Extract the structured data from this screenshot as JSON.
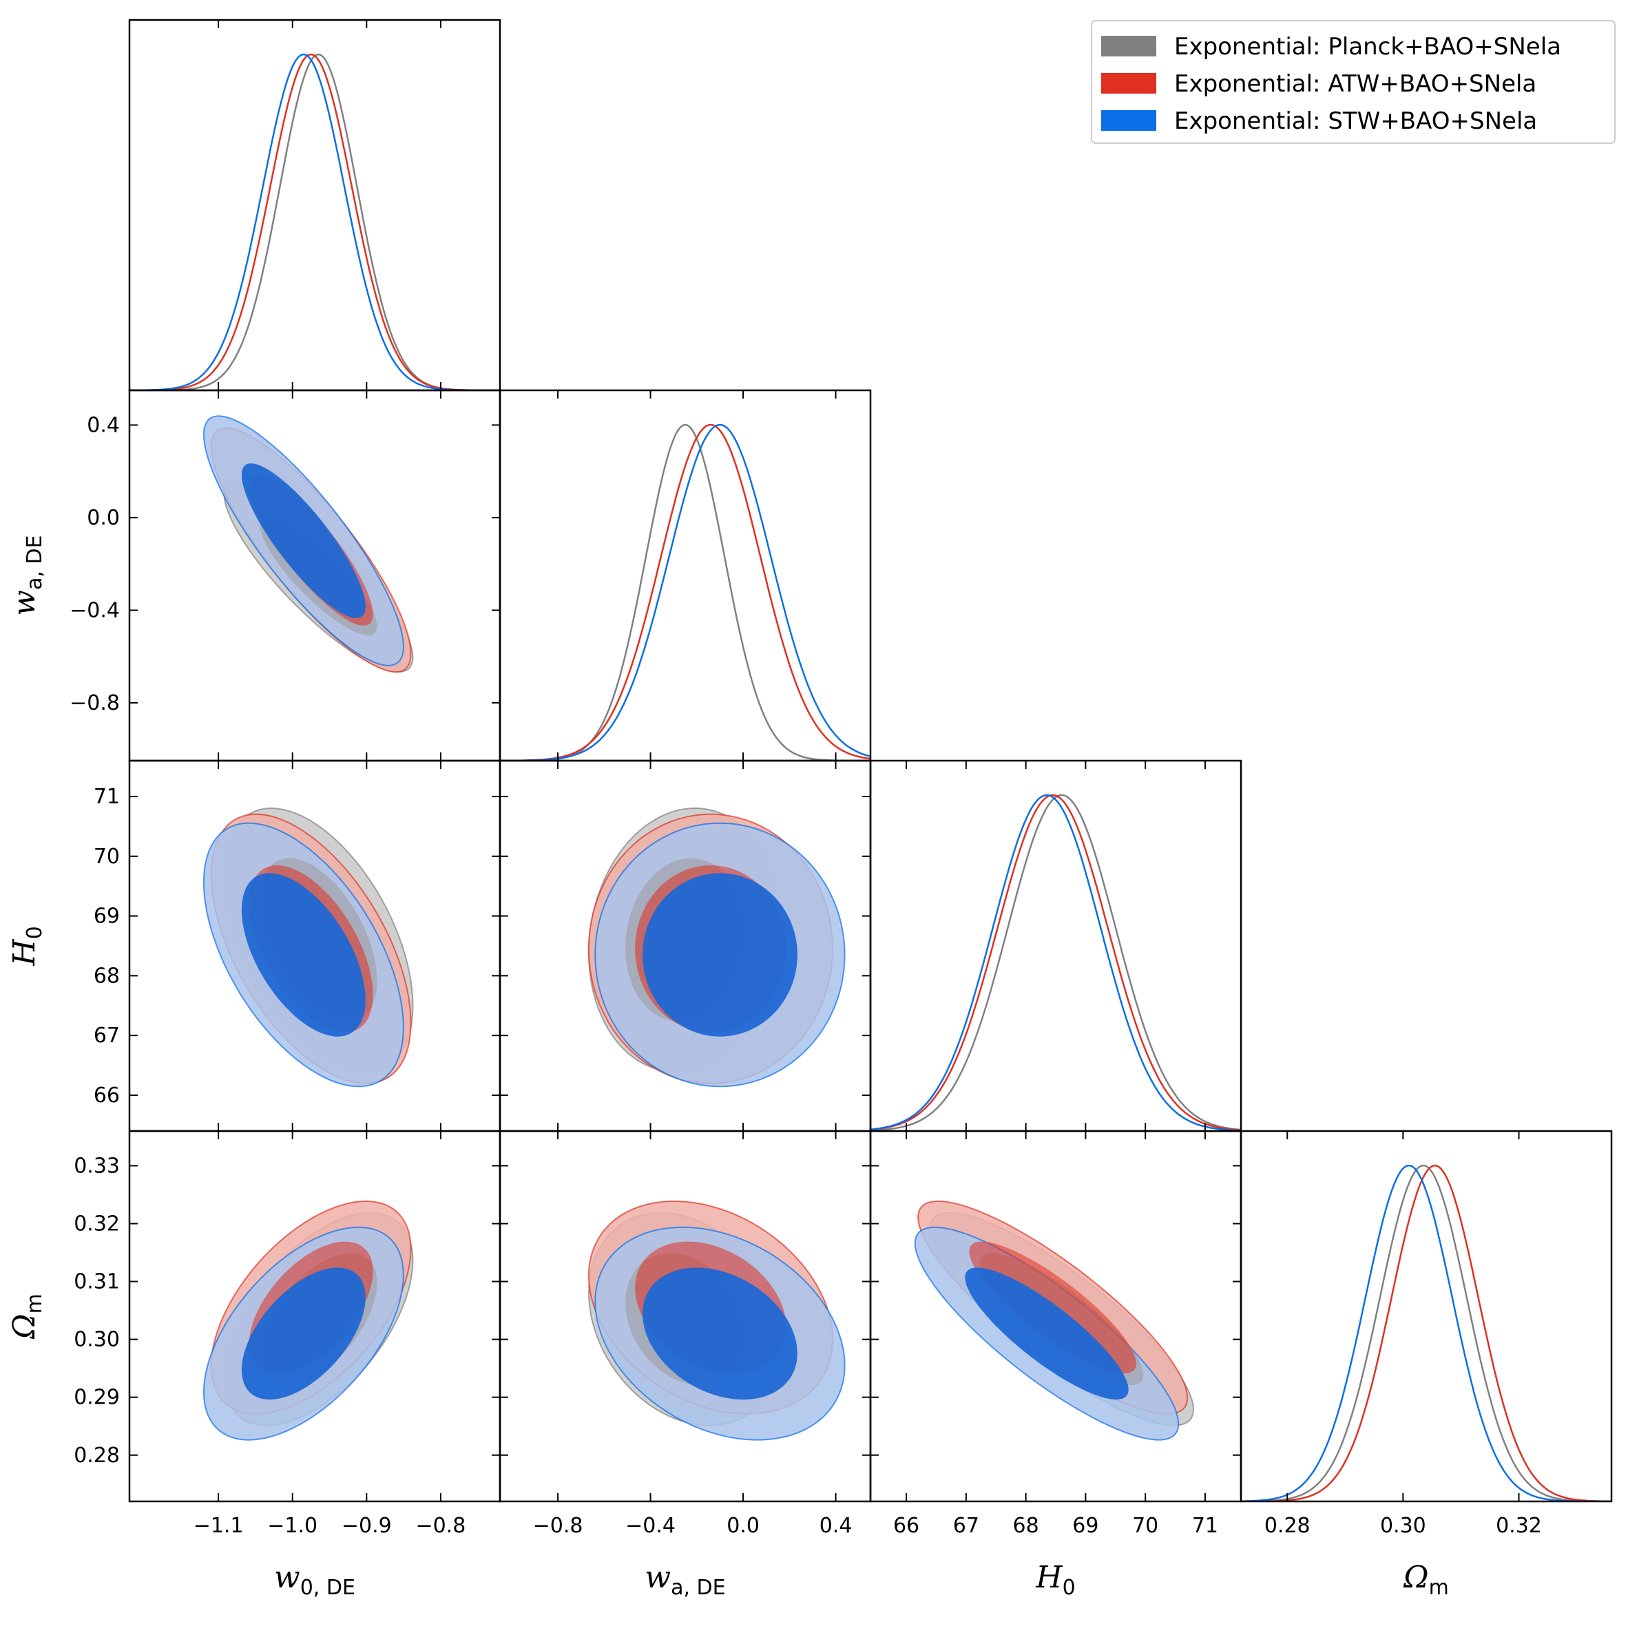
{
  "chart_data": {
    "type": "triangle-corner-plot",
    "params": [
      {
        "key": "w0",
        "label_main": "w",
        "label_sub": "0, DE",
        "range": [
          -1.22,
          -0.72
        ],
        "ticks": [
          -1.1,
          -1.0,
          -0.9,
          -0.8
        ],
        "tick_labels": [
          "−1.1",
          "−1.0",
          "−0.9",
          "−0.8"
        ]
      },
      {
        "key": "wa",
        "label_main": "w",
        "label_sub": "a, DE",
        "range": [
          -1.05,
          0.55
        ],
        "ticks": [
          -0.8,
          -0.4,
          0.0,
          0.4
        ],
        "tick_labels": [
          "−0.8",
          "−0.4",
          "0.0",
          "0.4"
        ]
      },
      {
        "key": "H0",
        "label_main": "H",
        "label_sub": "0",
        "range": [
          65.4,
          71.6
        ],
        "ticks": [
          66,
          67,
          68,
          69,
          70,
          71
        ],
        "tick_labels": [
          "66",
          "67",
          "68",
          "69",
          "70",
          "71"
        ]
      },
      {
        "key": "Om",
        "label_main": "Ω",
        "label_sub": "m",
        "range": [
          0.272,
          0.336
        ],
        "ticks": [
          0.28,
          0.3,
          0.32
        ],
        "tick_labels": [
          "0.28",
          "0.30",
          "0.32"
        ]
      }
    ],
    "row_tick_labels": {
      "wa": [
        "0.4",
        "0.0",
        "−0.4",
        "−0.8"
      ],
      "H0": [
        "71",
        "70",
        "69",
        "68",
        "67",
        "66"
      ],
      "Om": [
        "0.33",
        "0.32",
        "0.31",
        "0.30",
        "0.29",
        "0.28"
      ]
    },
    "row_ticks": {
      "wa": [
        0.4,
        0.0,
        -0.4,
        -0.8
      ],
      "H0": [
        71,
        70,
        69,
        68,
        67,
        66
      ],
      "Om": [
        0.33,
        0.32,
        0.31,
        0.3,
        0.29,
        0.28
      ]
    },
    "series": [
      {
        "name": "Exponential: Planck+BAO+SNela",
        "color": "#808080",
        "fill_inner": "#9a9a9a",
        "fill_outer": "#c8c8c8",
        "mean": {
          "w0": -0.965,
          "wa": -0.25,
          "H0": 68.6,
          "Om": 0.3035
        },
        "sigma": {
          "w0": 0.052,
          "wa": 0.17,
          "H0": 0.9,
          "Om": 0.0075
        },
        "corr": {
          "w0-wa": -0.85,
          "w0-H0": -0.5,
          "w0-Om": 0.55,
          "wa-H0": 0.1,
          "wa-Om": -0.25,
          "H0-Om": -0.85
        }
      },
      {
        "name": "Exponential: ATW+BAO+SNela",
        "color": "#e03020",
        "fill_inner": "#e03020",
        "fill_outer": "#f0b0a8",
        "mean": {
          "w0": -0.975,
          "wa": -0.14,
          "H0": 68.45,
          "Om": 0.3055
        },
        "sigma": {
          "w0": 0.055,
          "wa": 0.215,
          "H0": 0.92,
          "Om": 0.0075
        },
        "corr": {
          "w0-wa": -0.85,
          "w0-H0": -0.55,
          "w0-Om": 0.55,
          "wa-H0": 0.0,
          "wa-Om": -0.3,
          "H0-Om": -0.85
        }
      },
      {
        "name": "Exponential: STW+BAO+SNela",
        "color": "#0a6fe8",
        "fill_inner": "#1f68d4",
        "fill_outer": "#a9c3ec",
        "mean": {
          "w0": -0.985,
          "wa": -0.1,
          "H0": 68.35,
          "Om": 0.301
        },
        "sigma": {
          "w0": 0.055,
          "wa": 0.22,
          "H0": 0.9,
          "Om": 0.0075
        },
        "corr": {
          "w0-wa": -0.85,
          "w0-H0": -0.55,
          "w0-Om": 0.55,
          "wa-H0": 0.0,
          "wa-Om": -0.3,
          "H0-Om": -0.85
        }
      }
    ],
    "legend_position": "top-right"
  }
}
